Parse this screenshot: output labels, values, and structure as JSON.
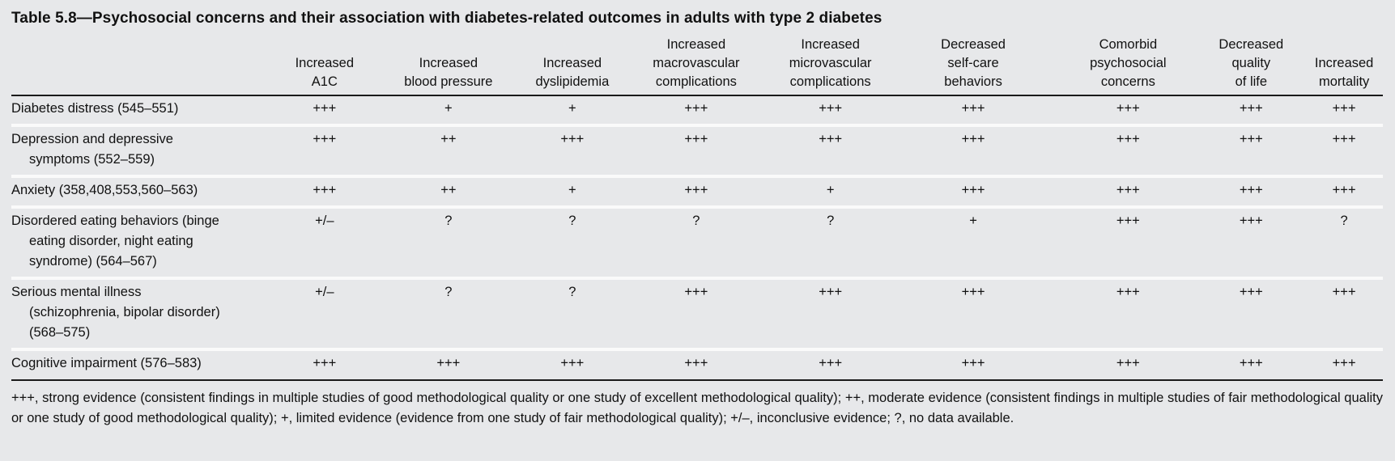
{
  "title": "Table 5.8—Psychosocial concerns and their association with diabetes-related outcomes in adults with type 2 diabetes",
  "columns": [
    "",
    "Increased\nA1C",
    "Increased\nblood pressure",
    "Increased\ndyslipidemia",
    "Increased\nmacrovascular\ncomplications",
    "Increased\nmicrovascular\ncomplications",
    "Decreased\nself-care\nbehaviors",
    "Comorbid\npsychosocial\nconcerns",
    "Decreased\nquality\nof life",
    "Increased\nmortality"
  ],
  "rows": [
    {
      "label": "Diabetes distress (545–551)",
      "values": [
        "+++",
        "+",
        "+",
        "+++",
        "+++",
        "+++",
        "+++",
        "+++",
        "+++"
      ]
    },
    {
      "label": "Depression and depressive symptoms (552–559)",
      "values": [
        "+++",
        "++",
        "+++",
        "+++",
        "+++",
        "+++",
        "+++",
        "+++",
        "+++"
      ]
    },
    {
      "label": "Anxiety (358,408,553,560–563)",
      "values": [
        "+++",
        "++",
        "+",
        "+++",
        "+",
        "+++",
        "+++",
        "+++",
        "+++"
      ]
    },
    {
      "label": "Disordered eating behaviors (binge eating disorder, night eating syndrome) (564–567)",
      "values": [
        "+/–",
        "?",
        "?",
        "?",
        "?",
        "+",
        "+++",
        "+++",
        "?"
      ]
    },
    {
      "label": "Serious mental illness (schizophrenia, bipolar disorder) (568–575)",
      "values": [
        "+/–",
        "?",
        "?",
        "+++",
        "+++",
        "+++",
        "+++",
        "+++",
        "+++"
      ]
    },
    {
      "label": "Cognitive impairment (576–583)",
      "values": [
        "+++",
        "+++",
        "+++",
        "+++",
        "+++",
        "+++",
        "+++",
        "+++",
        "+++"
      ]
    }
  ],
  "footnote": "+++, strong evidence (consistent findings in multiple studies of good methodological quality or one study of excellent methodological quality); ++, moderate evidence (consistent findings in multiple studies of fair methodological quality or one study of good methodological quality); +, limited evidence (evidence from one study of fair methodological quality); +/–, inconclusive evidence; ?, no data available."
}
